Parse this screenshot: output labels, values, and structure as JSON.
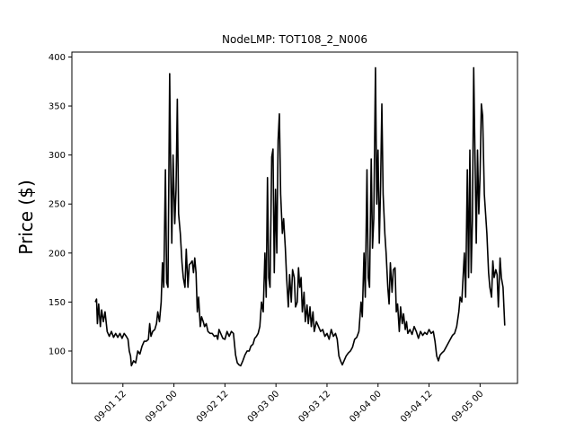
{
  "chart_data": {
    "type": "line",
    "title": "NodeLMP: TOT108_2_N006",
    "xlabel": "",
    "ylabel": "Price ($)",
    "y_ticks": [
      100,
      150,
      200,
      250,
      300,
      350,
      400
    ],
    "x_ticks": [
      {
        "hours": 12,
        "label": "09-01 12"
      },
      {
        "hours": 24,
        "label": "09-02 00"
      },
      {
        "hours": 36,
        "label": "09-02 12"
      },
      {
        "hours": 48,
        "label": "09-03 00"
      },
      {
        "hours": 60,
        "label": "09-03 12"
      },
      {
        "hours": 72,
        "label": "09-04 00"
      },
      {
        "hours": 84,
        "label": "09-04 12"
      },
      {
        "hours": 96,
        "label": "09-05 00"
      }
    ],
    "xlim_hours": [
      0,
      104.8
    ],
    "ylim": [
      67,
      405
    ],
    "grid": false,
    "legend": "none",
    "line_color": "#000000",
    "series": [
      {
        "points": [
          [
            5.5,
            150
          ],
          [
            5.8,
            153
          ],
          [
            6.0,
            128
          ],
          [
            6.3,
            148
          ],
          [
            6.7,
            125
          ],
          [
            7.0,
            142
          ],
          [
            7.4,
            130
          ],
          [
            7.8,
            140
          ],
          [
            8.3,
            120
          ],
          [
            8.8,
            115
          ],
          [
            9.3,
            120
          ],
          [
            9.8,
            114
          ],
          [
            10.3,
            118
          ],
          [
            10.8,
            114
          ],
          [
            11.3,
            118
          ],
          [
            11.8,
            113
          ],
          [
            12.3,
            118
          ],
          [
            12.8,
            115
          ],
          [
            13.2,
            112
          ],
          [
            13.5,
            100
          ],
          [
            13.8,
            95
          ],
          [
            14.0,
            85
          ],
          [
            14.5,
            90
          ],
          [
            15.0,
            88
          ],
          [
            15.5,
            100
          ],
          [
            16.0,
            97
          ],
          [
            16.5,
            105
          ],
          [
            17.0,
            110
          ],
          [
            17.5,
            110
          ],
          [
            18.0,
            112
          ],
          [
            18.3,
            128
          ],
          [
            18.6,
            115
          ],
          [
            19.0,
            120
          ],
          [
            19.5,
            122
          ],
          [
            19.9,
            128
          ],
          [
            20.2,
            140
          ],
          [
            20.6,
            130
          ],
          [
            21.0,
            150
          ],
          [
            21.3,
            190
          ],
          [
            21.6,
            165
          ],
          [
            22.0,
            285
          ],
          [
            22.3,
            170
          ],
          [
            22.6,
            165
          ],
          [
            23.0,
            383
          ],
          [
            23.2,
            300
          ],
          [
            23.5,
            210
          ],
          [
            23.8,
            300
          ],
          [
            24.2,
            230
          ],
          [
            24.5,
            265
          ],
          [
            24.8,
            357
          ],
          [
            25.1,
            240
          ],
          [
            25.5,
            220
          ],
          [
            25.9,
            190
          ],
          [
            26.2,
            175
          ],
          [
            26.6,
            165
          ],
          [
            26.9,
            204
          ],
          [
            27.3,
            165
          ],
          [
            27.6,
            188
          ],
          [
            28.0,
            190
          ],
          [
            28.3,
            192
          ],
          [
            28.6,
            180
          ],
          [
            28.9,
            195
          ],
          [
            29.2,
            180
          ],
          [
            29.5,
            140
          ],
          [
            29.8,
            155
          ],
          [
            30.2,
            125
          ],
          [
            30.5,
            135
          ],
          [
            30.9,
            130
          ],
          [
            31.2,
            125
          ],
          [
            31.6,
            128
          ],
          [
            32.0,
            120
          ],
          [
            32.5,
            118
          ],
          [
            33.0,
            118
          ],
          [
            33.5,
            115
          ],
          [
            34.0,
            116
          ],
          [
            34.3,
            112
          ],
          [
            34.6,
            122
          ],
          [
            35.0,
            118
          ],
          [
            35.5,
            113
          ],
          [
            36.0,
            112
          ],
          [
            36.5,
            120
          ],
          [
            37.0,
            115
          ],
          [
            37.5,
            120
          ],
          [
            38.0,
            118
          ],
          [
            38.5,
            96
          ],
          [
            38.9,
            88
          ],
          [
            39.3,
            86
          ],
          [
            39.7,
            85
          ],
          [
            40.2,
            90
          ],
          [
            40.7,
            96
          ],
          [
            41.2,
            100
          ],
          [
            41.7,
            100
          ],
          [
            42.1,
            105
          ],
          [
            42.6,
            107
          ],
          [
            43.0,
            113
          ],
          [
            43.4,
            115
          ],
          [
            43.8,
            118
          ],
          [
            44.2,
            125
          ],
          [
            44.6,
            150
          ],
          [
            45.0,
            140
          ],
          [
            45.4,
            200
          ],
          [
            45.7,
            155
          ],
          [
            46.0,
            277
          ],
          [
            46.3,
            175
          ],
          [
            46.6,
            165
          ],
          [
            47.0,
            298
          ],
          [
            47.3,
            306
          ],
          [
            47.6,
            180
          ],
          [
            47.9,
            265
          ],
          [
            48.2,
            200
          ],
          [
            48.5,
            315
          ],
          [
            48.8,
            342
          ],
          [
            49.1,
            260
          ],
          [
            49.5,
            220
          ],
          [
            49.8,
            235
          ],
          [
            50.2,
            205
          ],
          [
            50.5,
            175
          ],
          [
            50.9,
            145
          ],
          [
            51.2,
            178
          ],
          [
            51.6,
            150
          ],
          [
            51.9,
            183
          ],
          [
            52.3,
            175
          ],
          [
            52.6,
            145
          ],
          [
            53.0,
            150
          ],
          [
            53.3,
            185
          ],
          [
            53.6,
            165
          ],
          [
            53.9,
            175
          ],
          [
            54.2,
            140
          ],
          [
            54.6,
            160
          ],
          [
            54.9,
            130
          ],
          [
            55.3,
            147
          ],
          [
            55.6,
            128
          ],
          [
            56.0,
            145
          ],
          [
            56.3,
            125
          ],
          [
            56.7,
            140
          ],
          [
            57.0,
            120
          ],
          [
            57.5,
            130
          ],
          [
            58.0,
            125
          ],
          [
            58.5,
            120
          ],
          [
            59.0,
            122
          ],
          [
            59.5,
            115
          ],
          [
            60.0,
            118
          ],
          [
            60.5,
            112
          ],
          [
            61.0,
            122
          ],
          [
            61.5,
            115
          ],
          [
            62.0,
            118
          ],
          [
            62.4,
            112
          ],
          [
            62.8,
            95
          ],
          [
            63.2,
            90
          ],
          [
            63.6,
            86
          ],
          [
            64.0,
            90
          ],
          [
            64.5,
            95
          ],
          [
            65.0,
            98
          ],
          [
            65.5,
            100
          ],
          [
            66.0,
            104
          ],
          [
            66.5,
            112
          ],
          [
            67.0,
            114
          ],
          [
            67.5,
            120
          ],
          [
            68.0,
            150
          ],
          [
            68.3,
            135
          ],
          [
            68.7,
            200
          ],
          [
            69.0,
            155
          ],
          [
            69.4,
            285
          ],
          [
            69.7,
            175
          ],
          [
            70.0,
            165
          ],
          [
            70.4,
            296
          ],
          [
            70.7,
            205
          ],
          [
            71.0,
            235
          ],
          [
            71.4,
            389
          ],
          [
            71.7,
            250
          ],
          [
            72.0,
            305
          ],
          [
            72.3,
            210
          ],
          [
            72.6,
            268
          ],
          [
            72.9,
            352
          ],
          [
            73.2,
            260
          ],
          [
            73.6,
            220
          ],
          [
            73.9,
            200
          ],
          [
            74.3,
            165
          ],
          [
            74.6,
            148
          ],
          [
            74.9,
            190
          ],
          [
            75.3,
            160
          ],
          [
            75.6,
            183
          ],
          [
            76.0,
            185
          ],
          [
            76.3,
            140
          ],
          [
            76.6,
            148
          ],
          [
            77.0,
            120
          ],
          [
            77.3,
            145
          ],
          [
            77.7,
            128
          ],
          [
            78.0,
            138
          ],
          [
            78.4,
            122
          ],
          [
            78.7,
            130
          ],
          [
            79.0,
            118
          ],
          [
            79.5,
            122
          ],
          [
            80.0,
            117
          ],
          [
            80.5,
            125
          ],
          [
            81.0,
            120
          ],
          [
            81.5,
            113
          ],
          [
            82.0,
            120
          ],
          [
            82.5,
            116
          ],
          [
            83.0,
            119
          ],
          [
            83.5,
            117
          ],
          [
            84.0,
            122
          ],
          [
            84.5,
            118
          ],
          [
            85.0,
            120
          ],
          [
            85.4,
            110
          ],
          [
            85.8,
            95
          ],
          [
            86.2,
            90
          ],
          [
            86.6,
            96
          ],
          [
            87.0,
            98
          ],
          [
            87.5,
            100
          ],
          [
            88.0,
            104
          ],
          [
            88.5,
            108
          ],
          [
            89.0,
            112
          ],
          [
            89.5,
            116
          ],
          [
            90.0,
            118
          ],
          [
            90.5,
            125
          ],
          [
            91.0,
            140
          ],
          [
            91.3,
            155
          ],
          [
            91.7,
            150
          ],
          [
            92.0,
            175
          ],
          [
            92.3,
            200
          ],
          [
            92.6,
            155
          ],
          [
            93.0,
            285
          ],
          [
            93.3,
            175
          ],
          [
            93.6,
            305
          ],
          [
            93.9,
            180
          ],
          [
            94.2,
            234
          ],
          [
            94.5,
            389
          ],
          [
            94.8,
            300
          ],
          [
            95.1,
            210
          ],
          [
            95.4,
            305
          ],
          [
            95.7,
            240
          ],
          [
            96.0,
            280
          ],
          [
            96.3,
            352
          ],
          [
            96.6,
            340
          ],
          [
            97.0,
            260
          ],
          [
            97.3,
            240
          ],
          [
            97.6,
            220
          ],
          [
            98.0,
            180
          ],
          [
            98.3,
            165
          ],
          [
            98.7,
            155
          ],
          [
            99.0,
            192
          ],
          [
            99.3,
            175
          ],
          [
            99.7,
            183
          ],
          [
            100.0,
            178
          ],
          [
            100.3,
            145
          ],
          [
            100.7,
            195
          ],
          [
            101.0,
            175
          ],
          [
            101.4,
            165
          ],
          [
            101.8,
            126
          ]
        ]
      }
    ]
  }
}
